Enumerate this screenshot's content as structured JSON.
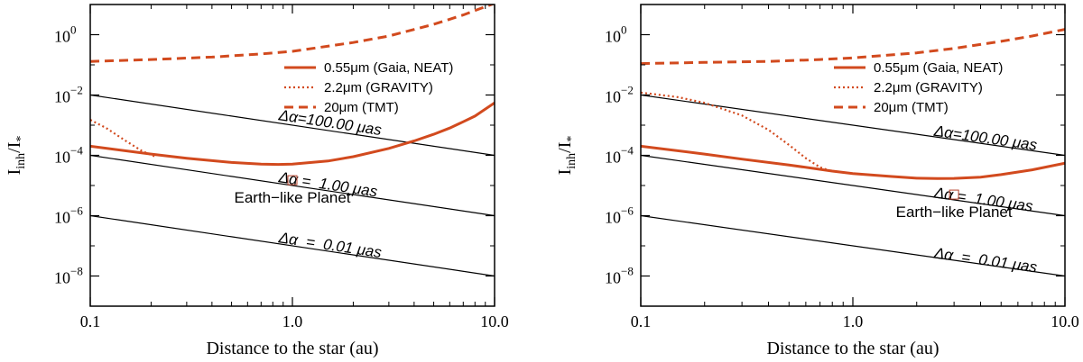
{
  "chart_data": [
    {
      "type": "line",
      "panel": "left",
      "xlabel": "Distance to the star (au)",
      "ylabel": {
        "main": "I",
        "sub1": "inh",
        "mid": "/I",
        "sub2": "*"
      },
      "xscale": "log",
      "yscale": "log",
      "xlim": [
        0.1,
        10.0
      ],
      "ylim": [
        1e-09,
        10
      ],
      "xticks": [
        {
          "value": 0.1,
          "label": "0.1"
        },
        {
          "value": 1.0,
          "label": "1.0"
        },
        {
          "value": 10.0,
          "label": "10.0"
        }
      ],
      "yticks": [
        {
          "value": 1e-08,
          "base": "10",
          "exp": "−8"
        },
        {
          "value": 1e-06,
          "base": "10",
          "exp": "−6"
        },
        {
          "value": 0.0001,
          "base": "10",
          "exp": "−4"
        },
        {
          "value": 0.01,
          "base": "10",
          "exp": "−2"
        },
        {
          "value": 1,
          "base": "10",
          "exp": "0"
        }
      ],
      "series": [
        {
          "name": "0.55μm (Gaia, NEAT)",
          "style": "solid",
          "color": "#d24a1e",
          "x": [
            0.1,
            0.2,
            0.3,
            0.5,
            0.7,
            0.85,
            1.0,
            1.5,
            2.0,
            3.0,
            4.0,
            5.0,
            6.0,
            7.0,
            8.0,
            10.0
          ],
          "y": [
            0.0002,
            0.00011,
            8e-05,
            5.8e-05,
            5.1e-05,
            5e-05,
            5.1e-05,
            6.5e-05,
            9e-05,
            0.00017,
            0.0003,
            0.0005,
            0.0008,
            0.0013,
            0.002,
            0.0055
          ]
        },
        {
          "name": "2.2μm (GRAVITY)",
          "style": "dotted",
          "color": "#d24a1e",
          "x": [
            0.1,
            0.12,
            0.15,
            0.18,
            0.21
          ],
          "y": [
            0.0015,
            0.0008,
            0.0003,
            0.00014,
            9e-05
          ]
        },
        {
          "name": "20μm (TMT)",
          "style": "dashed",
          "color": "#d24a1e",
          "x": [
            0.1,
            0.2,
            0.4,
            0.7,
            1.0,
            2.0,
            3.0,
            5.0,
            7.0,
            10.0
          ],
          "y": [
            0.13,
            0.15,
            0.18,
            0.23,
            0.28,
            0.55,
            0.9,
            2.2,
            4.5,
            11.0
          ]
        }
      ],
      "reference_lines": [
        {
          "label": "Δα=100.00 μas",
          "x": [
            0.1,
            10.0
          ],
          "y": [
            0.01,
            0.0001
          ]
        },
        {
          "label": "Δα =  1.00 μas",
          "x": [
            0.1,
            10.0
          ],
          "y": [
            0.0001,
            1e-06
          ]
        },
        {
          "label": "Δα  =  0.01 μas",
          "x": [
            0.1,
            10.0
          ],
          "y": [
            1e-06,
            1e-08
          ]
        }
      ],
      "reference_label_anchors": [
        {
          "x": 0.85,
          "y": 0.0015
        },
        {
          "x": 0.85,
          "y": 1.3e-05
        },
        {
          "x": 0.85,
          "y": 1.3e-07
        }
      ],
      "marker": {
        "label": "Earth−like Planet",
        "x": 1.0,
        "y": 1.5e-05
      },
      "legend_position": "top-right"
    },
    {
      "type": "line",
      "panel": "right",
      "xlabel": "Distance to the star (au)",
      "ylabel": {
        "main": "I",
        "sub1": "inh",
        "mid": "/I",
        "sub2": "*"
      },
      "xscale": "log",
      "yscale": "log",
      "xlim": [
        0.1,
        10.0
      ],
      "ylim": [
        1e-09,
        10
      ],
      "xticks": [
        {
          "value": 0.1,
          "label": "0.1"
        },
        {
          "value": 1.0,
          "label": "1.0"
        },
        {
          "value": 10.0,
          "label": "10.0"
        }
      ],
      "yticks": [
        {
          "value": 1e-08,
          "base": "10",
          "exp": "−8"
        },
        {
          "value": 1e-06,
          "base": "10",
          "exp": "−6"
        },
        {
          "value": 0.0001,
          "base": "10",
          "exp": "−4"
        },
        {
          "value": 0.01,
          "base": "10",
          "exp": "−2"
        },
        {
          "value": 1,
          "base": "10",
          "exp": "0"
        }
      ],
      "series": [
        {
          "name": "0.55μm (Gaia, NEAT)",
          "style": "solid",
          "color": "#d24a1e",
          "x": [
            0.1,
            0.2,
            0.3,
            0.5,
            0.8,
            1.0,
            1.5,
            2.0,
            2.5,
            3.0,
            4.0,
            5.0,
            7.0,
            10.0
          ],
          "y": [
            0.0002,
            0.00011,
            7.5e-05,
            4.8e-05,
            3e-05,
            2.5e-05,
            2e-05,
            1.75e-05,
            1.7e-05,
            1.72e-05,
            1.9e-05,
            2.3e-05,
            3.3e-05,
            5.5e-05
          ]
        },
        {
          "name": "2.2μm (GRAVITY)",
          "style": "dotted",
          "color": "#d24a1e",
          "x": [
            0.1,
            0.15,
            0.2,
            0.3,
            0.4,
            0.5,
            0.6,
            0.7,
            0.8
          ],
          "y": [
            0.012,
            0.0085,
            0.0055,
            0.0021,
            0.0007,
            0.00022,
            8e-05,
            4e-05,
            2.9e-05
          ]
        },
        {
          "name": "20μm (TMT)",
          "style": "dashed",
          "color": "#d24a1e",
          "x": [
            0.1,
            0.2,
            0.4,
            0.7,
            1.0,
            2.0,
            3.0,
            5.0,
            7.0,
            10.0
          ],
          "y": [
            0.11,
            0.12,
            0.13,
            0.15,
            0.17,
            0.25,
            0.35,
            0.6,
            0.9,
            1.5
          ]
        }
      ],
      "reference_lines": [
        {
          "label": "Δα=100.00 μas",
          "x": [
            0.1,
            10.0
          ],
          "y": [
            0.01,
            0.0001
          ]
        },
        {
          "label": "Δα =  1.00 μas",
          "x": [
            0.1,
            10.0
          ],
          "y": [
            0.0001,
            1e-06
          ]
        },
        {
          "label": "Δα  =  0.01 μas",
          "x": [
            0.1,
            10.0
          ],
          "y": [
            1e-06,
            1e-08
          ]
        }
      ],
      "reference_label_anchors": [
        {
          "x": 2.4,
          "y": 0.00045
        },
        {
          "x": 2.4,
          "y": 4e-06
        },
        {
          "x": 2.4,
          "y": 4e-08
        }
      ],
      "marker": {
        "label": "Earth−like Planet",
        "x": 3.0,
        "y": 5e-06
      },
      "legend_position": "top-right"
    }
  ]
}
